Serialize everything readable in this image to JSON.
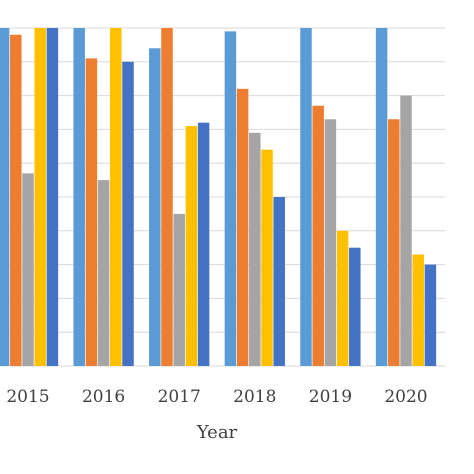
{
  "chart_data": {
    "type": "bar",
    "categories": [
      "2015",
      "2016",
      "2017",
      "2018",
      "2019",
      "2020"
    ],
    "series": [
      {
        "color": "#5B9BD5",
        "values": [
          100,
          100,
          94,
          99,
          100,
          100
        ]
      },
      {
        "color": "#ED7D31",
        "values": [
          98,
          91,
          100,
          82,
          77,
          73
        ]
      },
      {
        "color": "#A5A5A5",
        "values": [
          57,
          55,
          45,
          69,
          73,
          80
        ]
      },
      {
        "color": "#FFC000",
        "values": [
          100,
          100,
          71,
          64,
          40,
          33
        ]
      },
      {
        "color": "#4472C4",
        "values": [
          100,
          90,
          72,
          50,
          35,
          30
        ]
      }
    ],
    "xlabel": "Year",
    "ylim": [
      0,
      100
    ],
    "grid": true
  }
}
